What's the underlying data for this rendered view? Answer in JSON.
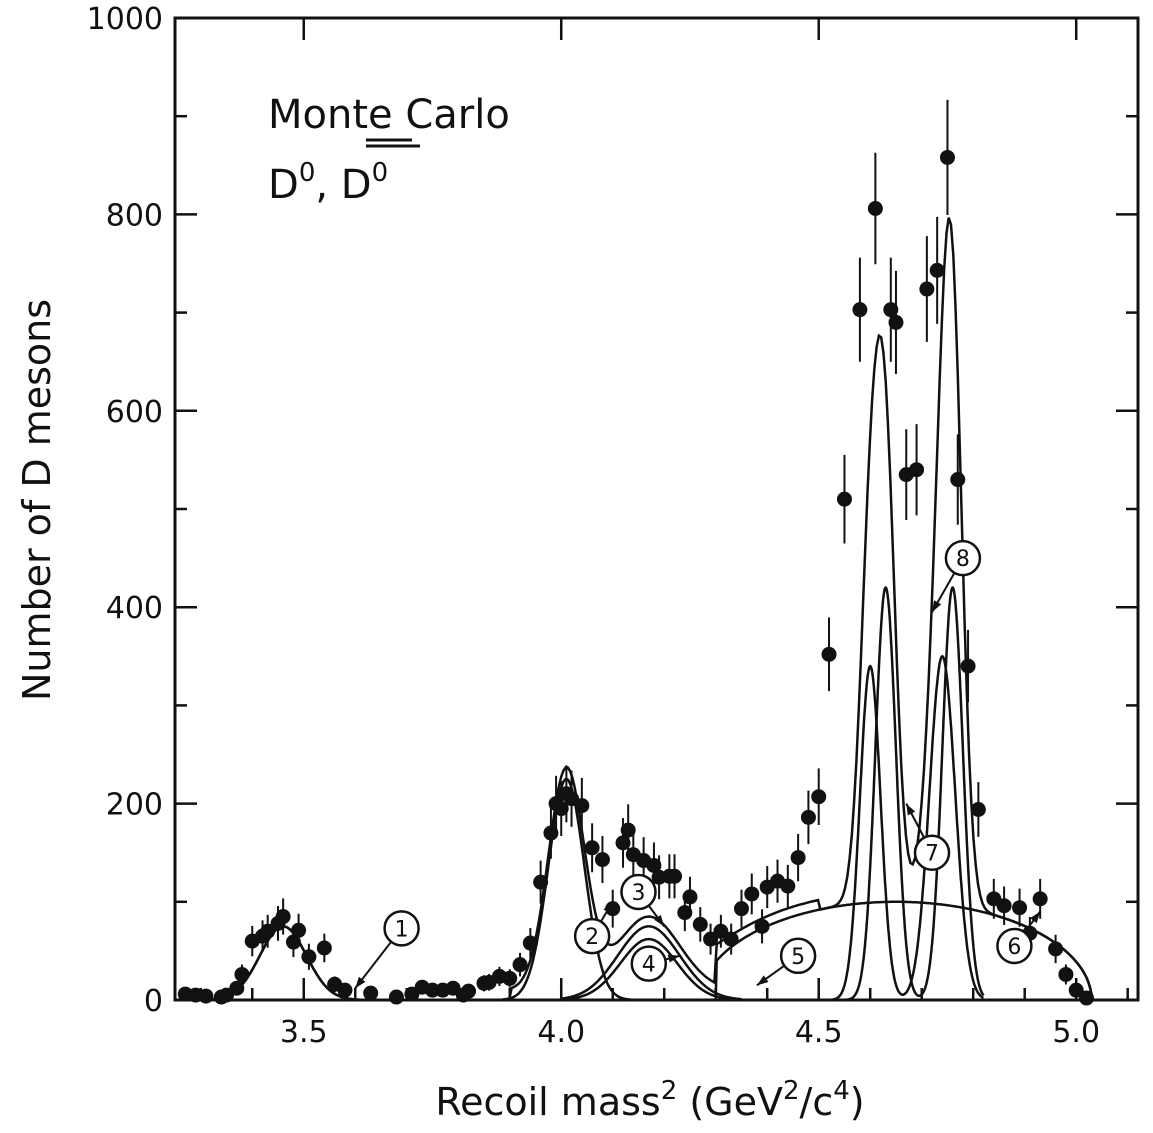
{
  "chart_data": {
    "type": "scatter",
    "xlabel": "Recoil mass",
    "xlabel_sup1": "2",
    "xlabel_unit_open": " (GeV",
    "xlabel_sup2": "2",
    "xlabel_unit_mid": "/c",
    "xlabel_sup3": "4",
    "xlabel_unit_close": ")",
    "ylabel": "Number of D mesons",
    "annotation_line1": "Monte Carlo",
    "annotation_line2_a": "D",
    "annotation_line2_sup": "0",
    "annotation_line2_b": ", ",
    "annotation_line2_c": "D",
    "annotation_line2_sup2": "0",
    "xlim": [
      3.25,
      5.12
    ],
    "ylim": [
      0,
      1000
    ],
    "x_ticks": [
      3.5,
      4.0,
      4.5,
      5.0
    ],
    "x_tick_labels": [
      "3.5",
      "4.0",
      "4.5",
      "5.0"
    ],
    "y_ticks": [
      0,
      200,
      400,
      600,
      800,
      1000
    ],
    "y_tick_labels": [
      "0",
      "200",
      "400",
      "600",
      "800",
      "1000"
    ],
    "grid": false,
    "component_labels": [
      {
        "label": "1",
        "cx": 3.69,
        "cy": 73,
        "ax": 3.6,
        "ay": 12
      },
      {
        "label": "2",
        "cx": 4.06,
        "cy": 65,
        "ax": 4.1,
        "ay": 100
      },
      {
        "label": "3",
        "cx": 4.15,
        "cy": 110,
        "ax": 4.2,
        "ay": 75
      },
      {
        "label": "4",
        "cx": 4.17,
        "cy": 37,
        "ax": 4.23,
        "ay": 45
      },
      {
        "label": "5",
        "cx": 4.46,
        "cy": 45,
        "ax": 4.38,
        "ay": 15
      },
      {
        "label": "6",
        "cx": 4.88,
        "cy": 55,
        "ax": 4.93,
        "ay": 90
      },
      {
        "label": "7",
        "cx": 4.72,
        "cy": 150,
        "ax": 4.67,
        "ay": 200
      },
      {
        "label": "8",
        "cx": 4.78,
        "cy": 450,
        "ax": 4.72,
        "ay": 395
      }
    ],
    "data_points": [
      {
        "x": 3.27,
        "y": 6
      },
      {
        "x": 3.29,
        "y": 5
      },
      {
        "x": 3.31,
        "y": 4
      },
      {
        "x": 3.34,
        "y": 3
      },
      {
        "x": 3.35,
        "y": 5
      },
      {
        "x": 3.37,
        "y": 12
      },
      {
        "x": 3.38,
        "y": 26
      },
      {
        "x": 3.4,
        "y": 60
      },
      {
        "x": 3.42,
        "y": 65
      },
      {
        "x": 3.43,
        "y": 70
      },
      {
        "x": 3.45,
        "y": 78
      },
      {
        "x": 3.46,
        "y": 85
      },
      {
        "x": 3.48,
        "y": 59
      },
      {
        "x": 3.49,
        "y": 71
      },
      {
        "x": 3.51,
        "y": 44
      },
      {
        "x": 3.54,
        "y": 53
      },
      {
        "x": 3.56,
        "y": 16
      },
      {
        "x": 3.58,
        "y": 10
      },
      {
        "x": 3.63,
        "y": 7
      },
      {
        "x": 3.68,
        "y": 3
      },
      {
        "x": 3.71,
        "y": 6
      },
      {
        "x": 3.73,
        "y": 13
      },
      {
        "x": 3.75,
        "y": 10
      },
      {
        "x": 3.77,
        "y": 10
      },
      {
        "x": 3.79,
        "y": 12
      },
      {
        "x": 3.81,
        "y": 5
      },
      {
        "x": 3.82,
        "y": 9
      },
      {
        "x": 3.85,
        "y": 17
      },
      {
        "x": 3.86,
        "y": 18
      },
      {
        "x": 3.88,
        "y": 24
      },
      {
        "x": 3.9,
        "y": 22
      },
      {
        "x": 3.92,
        "y": 36
      },
      {
        "x": 3.94,
        "y": 58
      },
      {
        "x": 3.96,
        "y": 120
      },
      {
        "x": 3.98,
        "y": 170
      },
      {
        "x": 3.99,
        "y": 200
      },
      {
        "x": 4.0,
        "y": 195
      },
      {
        "x": 4.01,
        "y": 210
      },
      {
        "x": 4.02,
        "y": 205
      },
      {
        "x": 4.04,
        "y": 198
      },
      {
        "x": 4.06,
        "y": 155
      },
      {
        "x": 4.08,
        "y": 143
      },
      {
        "x": 4.1,
        "y": 93
      },
      {
        "x": 4.12,
        "y": 160
      },
      {
        "x": 4.13,
        "y": 173
      },
      {
        "x": 4.14,
        "y": 148
      },
      {
        "x": 4.16,
        "y": 142
      },
      {
        "x": 4.18,
        "y": 137
      },
      {
        "x": 4.19,
        "y": 125
      },
      {
        "x": 4.21,
        "y": 126
      },
      {
        "x": 4.22,
        "y": 126
      },
      {
        "x": 4.24,
        "y": 89
      },
      {
        "x": 4.25,
        "y": 105
      },
      {
        "x": 4.27,
        "y": 77
      },
      {
        "x": 4.29,
        "y": 62
      },
      {
        "x": 4.31,
        "y": 70
      },
      {
        "x": 4.33,
        "y": 62
      },
      {
        "x": 4.35,
        "y": 93
      },
      {
        "x": 4.37,
        "y": 108
      },
      {
        "x": 4.39,
        "y": 75
      },
      {
        "x": 4.4,
        "y": 115
      },
      {
        "x": 4.42,
        "y": 121
      },
      {
        "x": 4.44,
        "y": 116
      },
      {
        "x": 4.46,
        "y": 145
      },
      {
        "x": 4.48,
        "y": 186
      },
      {
        "x": 4.5,
        "y": 207
      },
      {
        "x": 4.52,
        "y": 352
      },
      {
        "x": 4.55,
        "y": 510
      },
      {
        "x": 4.58,
        "y": 703
      },
      {
        "x": 4.61,
        "y": 806
      },
      {
        "x": 4.64,
        "y": 703
      },
      {
        "x": 4.65,
        "y": 690
      },
      {
        "x": 4.67,
        "y": 535
      },
      {
        "x": 4.69,
        "y": 540
      },
      {
        "x": 4.71,
        "y": 724
      },
      {
        "x": 4.73,
        "y": 743
      },
      {
        "x": 4.75,
        "y": 858
      },
      {
        "x": 4.77,
        "y": 530
      },
      {
        "x": 4.79,
        "y": 340
      },
      {
        "x": 4.81,
        "y": 194
      },
      {
        "x": 4.84,
        "y": 103
      },
      {
        "x": 4.86,
        "y": 96
      },
      {
        "x": 4.89,
        "y": 94
      },
      {
        "x": 4.91,
        "y": 68
      },
      {
        "x": 4.93,
        "y": 103
      },
      {
        "x": 4.96,
        "y": 52
      },
      {
        "x": 4.98,
        "y": 26
      },
      {
        "x": 5.0,
        "y": 10
      },
      {
        "x": 5.02,
        "y": 2
      }
    ]
  }
}
